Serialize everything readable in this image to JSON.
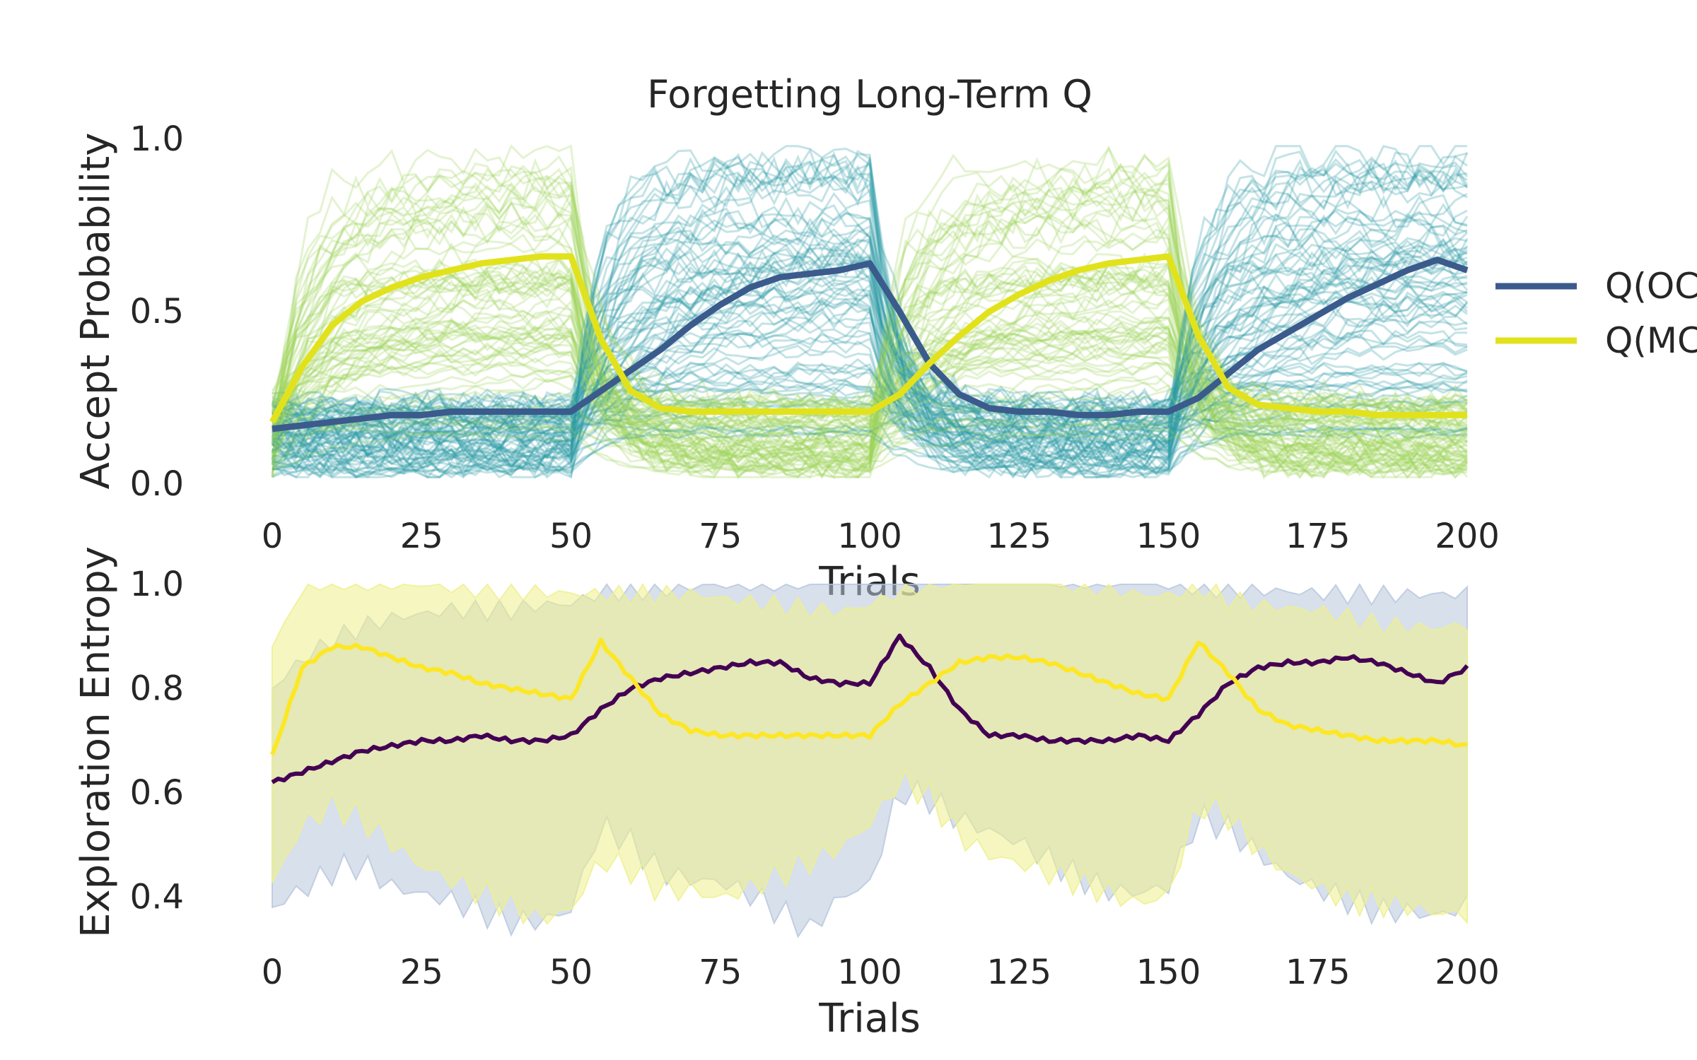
{
  "chart_data": [
    {
      "type": "line",
      "title": "Forgetting Long-Term Q",
      "xlabel": "Trials",
      "ylabel": "Accept Probability",
      "xlim": [
        0,
        200
      ],
      "ylim": [
        0,
        1
      ],
      "xticks": [
        "0",
        "25",
        "50",
        "75",
        "100",
        "125",
        "150",
        "175",
        "200"
      ],
      "yticks": [
        "0.0",
        "0.5",
        "1.0"
      ],
      "grid": false,
      "legend_position": "right (partially cut off)",
      "legend": [
        "Q(OC",
        "Q(MC"
      ],
      "background_traces": "many semi-transparent individual simulation traces in teal and yellow-green",
      "x": [
        0,
        5,
        10,
        15,
        20,
        25,
        30,
        35,
        40,
        45,
        50,
        55,
        60,
        65,
        70,
        75,
        80,
        85,
        90,
        95,
        100,
        105,
        110,
        115,
        120,
        125,
        130,
        135,
        140,
        145,
        150,
        155,
        160,
        165,
        170,
        175,
        180,
        185,
        190,
        195,
        200
      ],
      "series": [
        {
          "name": "Q(OC",
          "color": "#3b5b8c",
          "values": [
            0.16,
            0.17,
            0.18,
            0.19,
            0.2,
            0.2,
            0.21,
            0.21,
            0.21,
            0.21,
            0.21,
            0.27,
            0.33,
            0.39,
            0.46,
            0.52,
            0.57,
            0.6,
            0.61,
            0.62,
            0.64,
            0.5,
            0.35,
            0.26,
            0.22,
            0.21,
            0.21,
            0.2,
            0.2,
            0.21,
            0.21,
            0.25,
            0.32,
            0.39,
            0.44,
            0.49,
            0.54,
            0.58,
            0.62,
            0.65,
            0.62
          ]
        },
        {
          "name": "Q(MC",
          "color": "#e2e21c",
          "values": [
            0.18,
            0.34,
            0.46,
            0.53,
            0.57,
            0.6,
            0.62,
            0.64,
            0.65,
            0.66,
            0.66,
            0.42,
            0.27,
            0.22,
            0.21,
            0.21,
            0.21,
            0.21,
            0.21,
            0.21,
            0.21,
            0.26,
            0.35,
            0.43,
            0.5,
            0.55,
            0.59,
            0.62,
            0.64,
            0.65,
            0.66,
            0.43,
            0.28,
            0.23,
            0.22,
            0.21,
            0.21,
            0.2,
            0.2,
            0.2,
            0.2
          ]
        }
      ]
    },
    {
      "type": "area",
      "xlabel": "Trials",
      "ylabel": "Exploration Entropy",
      "ylabel_color": "#3b6699",
      "xlim": [
        0,
        200
      ],
      "ylim": [
        0.25,
        1.05
      ],
      "xticks": [
        "0",
        "25",
        "50",
        "75",
        "100",
        "125",
        "150",
        "175",
        "200"
      ],
      "yticks": [
        "0.4",
        "0.6",
        "0.8",
        "1.0"
      ],
      "grid": false,
      "x": [
        0,
        5,
        10,
        15,
        20,
        25,
        30,
        35,
        40,
        45,
        50,
        55,
        60,
        65,
        70,
        75,
        80,
        85,
        90,
        95,
        100,
        105,
        110,
        115,
        120,
        125,
        130,
        135,
        140,
        145,
        150,
        155,
        160,
        165,
        170,
        175,
        180,
        185,
        190,
        195,
        200
      ],
      "series": [
        {
          "name": "",
          "color": "#440154",
          "values": [
            0.62,
            0.64,
            0.66,
            0.68,
            0.69,
            0.7,
            0.7,
            0.71,
            0.7,
            0.7,
            0.71,
            0.76,
            0.8,
            0.82,
            0.83,
            0.84,
            0.85,
            0.85,
            0.82,
            0.81,
            0.81,
            0.9,
            0.84,
            0.76,
            0.71,
            0.71,
            0.7,
            0.7,
            0.7,
            0.71,
            0.7,
            0.75,
            0.81,
            0.84,
            0.85,
            0.85,
            0.86,
            0.85,
            0.83,
            0.81,
            0.84
          ],
          "band_lower": [
            0.38,
            0.42,
            0.46,
            0.48,
            0.44,
            0.43,
            0.42,
            0.4,
            0.38,
            0.38,
            0.4,
            0.56,
            0.52,
            0.46,
            0.44,
            0.43,
            0.4,
            0.36,
            0.32,
            0.38,
            0.4,
            0.58,
            0.56,
            0.52,
            0.5,
            0.48,
            0.45,
            0.42,
            0.4,
            0.4,
            0.42,
            0.56,
            0.54,
            0.5,
            0.46,
            0.44,
            0.42,
            0.4,
            0.4,
            0.39,
            0.41
          ],
          "band_upper": [
            0.8,
            0.86,
            0.9,
            0.93,
            0.95,
            0.96,
            0.97,
            0.97,
            0.97,
            0.98,
            0.98,
            1.0,
            1.0,
            1.0,
            1.0,
            1.0,
            1.0,
            1.0,
            1.0,
            1.0,
            1.0,
            1.0,
            1.0,
            1.0,
            1.0,
            1.0,
            1.0,
            1.0,
            1.0,
            1.0,
            1.0,
            1.0,
            1.0,
            1.0,
            1.0,
            1.0,
            1.0,
            1.0,
            1.0,
            1.0,
            1.0
          ]
        },
        {
          "name": "",
          "color": "#fde725",
          "values": [
            0.67,
            0.84,
            0.88,
            0.88,
            0.86,
            0.84,
            0.83,
            0.81,
            0.8,
            0.79,
            0.78,
            0.89,
            0.82,
            0.75,
            0.72,
            0.71,
            0.71,
            0.71,
            0.71,
            0.71,
            0.71,
            0.77,
            0.81,
            0.85,
            0.86,
            0.86,
            0.85,
            0.83,
            0.81,
            0.79,
            0.78,
            0.89,
            0.83,
            0.76,
            0.73,
            0.72,
            0.71,
            0.7,
            0.7,
            0.7,
            0.69
          ],
          "band_lower": [
            0.4,
            0.52,
            0.56,
            0.54,
            0.5,
            0.46,
            0.44,
            0.42,
            0.4,
            0.38,
            0.4,
            0.5,
            0.48,
            0.44,
            0.44,
            0.42,
            0.44,
            0.46,
            0.48,
            0.5,
            0.54,
            0.62,
            0.58,
            0.5,
            0.46,
            0.44,
            0.42,
            0.4,
            0.38,
            0.36,
            0.38,
            0.56,
            0.54,
            0.48,
            0.44,
            0.42,
            0.4,
            0.4,
            0.4,
            0.39,
            0.39
          ],
          "band_upper": [
            0.86,
            0.98,
            1.0,
            1.0,
            1.0,
            1.0,
            1.0,
            1.0,
            1.0,
            1.0,
            1.0,
            1.0,
            1.0,
            1.0,
            1.0,
            0.99,
            0.98,
            0.97,
            0.96,
            0.95,
            0.96,
            0.98,
            1.0,
            1.0,
            1.0,
            1.0,
            1.0,
            0.98,
            0.97,
            0.96,
            0.96,
            0.98,
            0.96,
            0.95,
            0.95,
            0.95,
            0.94,
            0.93,
            0.93,
            0.93,
            0.94
          ]
        }
      ]
    }
  ]
}
